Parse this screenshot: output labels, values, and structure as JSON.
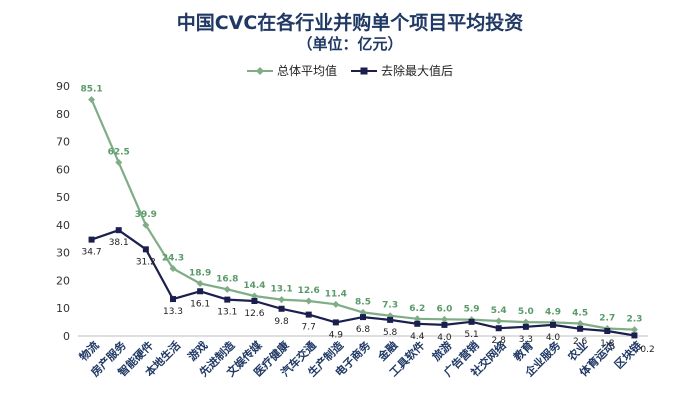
{
  "chart_data": {
    "type": "line",
    "title": "中国CVC在各行业并购单个项目平均投资",
    "subtitle": "（单位：亿元）",
    "categories": [
      "物流",
      "房产服务",
      "智能硬件",
      "本地生活",
      "游戏",
      "先进制造",
      "文娱传媒",
      "医疗健康",
      "汽车交通",
      "生产制造",
      "电子商务",
      "金融",
      "工具软件",
      "旅游",
      "广告营销",
      "社交网络",
      "教育",
      "企业服务",
      "农业",
      "体育运动",
      "区块链"
    ],
    "series": [
      {
        "name": "总体平均值",
        "color": "#7fae86",
        "values": [
          85.1,
          62.5,
          39.9,
          24.3,
          18.9,
          16.8,
          14.4,
          13.1,
          12.6,
          11.4,
          8.5,
          7.3,
          6.2,
          6.0,
          5.9,
          5.4,
          5.0,
          4.9,
          4.5,
          2.7,
          2.3
        ]
      },
      {
        "name": "去除最大值后",
        "color": "#1a1f4e",
        "values": [
          34.7,
          38.1,
          31.2,
          13.3,
          16.1,
          13.1,
          12.6,
          9.8,
          7.7,
          4.9,
          6.8,
          5.8,
          4.4,
          4.0,
          5.1,
          2.8,
          3.3,
          4.0,
          2.6,
          1.8,
          0.2
        ]
      }
    ],
    "ylim": [
      0,
      90
    ],
    "yticks": [
      0,
      10,
      20,
      30,
      40,
      50,
      60,
      70,
      80,
      90
    ],
    "legend_position": "top-center",
    "grid": false
  }
}
